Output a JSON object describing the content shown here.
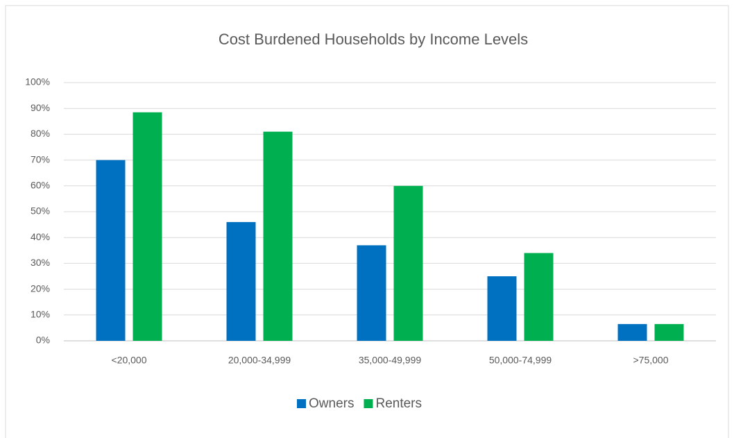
{
  "chart_data": {
    "type": "bar",
    "title": "Cost Burdened Households by Income Levels",
    "categories": [
      "<20,000",
      "20,000-34,999",
      "35,000-49,999",
      "50,000-74,999",
      ">75,000"
    ],
    "series": [
      {
        "name": "Owners",
        "color": "#0070c0",
        "values": [
          70,
          46,
          37,
          25,
          6.5
        ]
      },
      {
        "name": "Renters",
        "color": "#00b050",
        "values": [
          88.5,
          81,
          60,
          34,
          6.5
        ]
      }
    ],
    "ylim": [
      0,
      100
    ],
    "yticks": [
      {
        "value": 0,
        "label": "0%"
      },
      {
        "value": 10,
        "label": "10%"
      },
      {
        "value": 20,
        "label": "20%"
      },
      {
        "value": 30,
        "label": "30%"
      },
      {
        "value": 40,
        "label": "40%"
      },
      {
        "value": 50,
        "label": "50%"
      },
      {
        "value": 60,
        "label": "60%"
      },
      {
        "value": 70,
        "label": "70%"
      },
      {
        "value": 80,
        "label": "80%"
      },
      {
        "value": 90,
        "label": "90%"
      },
      {
        "value": 100,
        "label": "100%"
      }
    ],
    "grid": true,
    "legend": "bottom"
  }
}
